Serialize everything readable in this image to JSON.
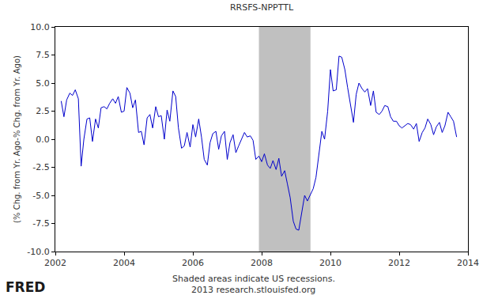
{
  "chart_data": {
    "type": "line",
    "title": "RRSFS-NPPTTL",
    "y_label": "(% Chg. from Yr. Ago-% Chg. from Yr. Ago)",
    "annotations": [
      "Shaded areas indicate US recessions.",
      "2013 research.stlouisfed.org",
      "FRED"
    ],
    "recessions": [
      {
        "start": 2007.92,
        "end": 2009.42
      }
    ],
    "color": "#0000cc",
    "grid": false,
    "xlim": [
      2002,
      2014
    ],
    "xticks": [
      2002,
      2004,
      2006,
      2008,
      2010,
      2012,
      2014
    ],
    "ylim": [
      -10,
      10
    ],
    "yticks": [
      {
        "value": -10,
        "label": "-10.0"
      },
      -7.5,
      {
        "value": -5,
        "label": "-5.0"
      },
      -2.5,
      {
        "value": 0,
        "label": "0.0"
      },
      2.5,
      {
        "value": 5,
        "label": "5.0"
      },
      7.5,
      {
        "value": 10,
        "label": "10.0"
      }
    ],
    "x": [
      2002.17,
      2002.25,
      2002.33,
      2002.42,
      2002.5,
      2002.58,
      2002.67,
      2002.75,
      2002.83,
      2002.92,
      2003.0,
      2003.08,
      2003.17,
      2003.25,
      2003.33,
      2003.42,
      2003.5,
      2003.58,
      2003.67,
      2003.75,
      2003.83,
      2003.92,
      2004.0,
      2004.08,
      2004.17,
      2004.25,
      2004.33,
      2004.42,
      2004.5,
      2004.58,
      2004.67,
      2004.75,
      2004.83,
      2004.92,
      2005.0,
      2005.08,
      2005.17,
      2005.25,
      2005.33,
      2005.42,
      2005.5,
      2005.58,
      2005.67,
      2005.75,
      2005.83,
      2005.92,
      2006.0,
      2006.08,
      2006.17,
      2006.25,
      2006.33,
      2006.42,
      2006.5,
      2006.58,
      2006.67,
      2006.75,
      2006.83,
      2006.92,
      2007.0,
      2007.08,
      2007.17,
      2007.25,
      2007.33,
      2007.42,
      2007.5,
      2007.58,
      2007.67,
      2007.75,
      2007.83,
      2007.92,
      2008.0,
      2008.08,
      2008.17,
      2008.25,
      2008.33,
      2008.42,
      2008.5,
      2008.58,
      2008.67,
      2008.75,
      2008.83,
      2008.92,
      2009.0,
      2009.08,
      2009.17,
      2009.25,
      2009.33,
      2009.42,
      2009.5,
      2009.58,
      2009.67,
      2009.75,
      2009.83,
      2009.92,
      2010.0,
      2010.08,
      2010.17,
      2010.25,
      2010.33,
      2010.42,
      2010.5,
      2010.58,
      2010.67,
      2010.75,
      2010.83,
      2010.92,
      2011.0,
      2011.08,
      2011.17,
      2011.25,
      2011.33,
      2011.42,
      2011.5,
      2011.58,
      2011.67,
      2011.75,
      2011.83,
      2011.92,
      2012.0,
      2012.08,
      2012.17,
      2012.25,
      2012.33,
      2012.42,
      2012.5,
      2012.58,
      2012.67,
      2012.75,
      2012.83,
      2012.92,
      2013.0,
      2013.08,
      2013.17,
      2013.25,
      2013.33,
      2013.42,
      2013.5,
      2013.58,
      2013.67
    ],
    "values": [
      3.4,
      2.0,
      3.5,
      4.1,
      3.9,
      4.4,
      3.6,
      -2.4,
      0.0,
      1.8,
      1.9,
      -0.2,
      1.8,
      1.0,
      2.8,
      2.9,
      2.7,
      3.2,
      3.6,
      3.2,
      3.8,
      2.4,
      2.5,
      4.6,
      4.1,
      2.8,
      3.5,
      0.6,
      0.7,
      -0.5,
      1.9,
      2.2,
      1.0,
      2.9,
      2.0,
      2.1,
      0.0,
      2.6,
      1.6,
      4.3,
      3.8,
      1.0,
      -0.8,
      -0.6,
      0.6,
      -0.7,
      1.3,
      0.2,
      1.8,
      0.2,
      -1.8,
      -2.3,
      -0.3,
      0.5,
      0.7,
      -0.9,
      0.3,
      0.7,
      -1.8,
      -0.3,
      0.4,
      -1.2,
      -0.6,
      0.0,
      0.6,
      0.2,
      0.3,
      -0.1,
      -1.8,
      -1.5,
      -2.0,
      -1.3,
      -2.3,
      -2.6,
      -1.9,
      -2.7,
      -1.7,
      -3.3,
      -2.8,
      -4.0,
      -5.2,
      -7.3,
      -8.0,
      -8.1,
      -6.5,
      -5.0,
      -5.5,
      -4.9,
      -4.4,
      -3.4,
      -1.0,
      0.7,
      0.0,
      2.5,
      6.2,
      4.3,
      4.4,
      7.4,
      7.3,
      6.2,
      4.6,
      3.0,
      1.5,
      4.0,
      5.0,
      4.5,
      4.2,
      4.5,
      3.0,
      4.3,
      2.4,
      2.2,
      2.5,
      3.0,
      2.9,
      2.0,
      1.6,
      1.6,
      1.2,
      1.0,
      1.2,
      1.4,
      1.3,
      0.9,
      1.4,
      -0.2,
      0.6,
      1.0,
      1.8,
      1.3,
      0.4,
      1.1,
      1.5,
      0.6,
      1.2,
      2.4,
      2.0,
      1.6,
      0.2
    ]
  }
}
